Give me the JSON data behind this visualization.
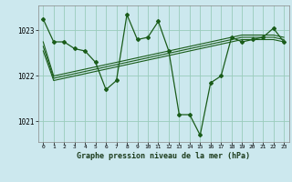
{
  "title": "Graphe pression niveau de la mer (hPa)",
  "bg_color": "#cce8ee",
  "grid_color": "#99ccbb",
  "line_color": "#1a5c1a",
  "xlim": [
    -0.5,
    23.5
  ],
  "ylim": [
    1020.55,
    1023.55
  ],
  "yticks": [
    1021,
    1022,
    1023
  ],
  "xticks": [
    0,
    1,
    2,
    3,
    4,
    5,
    6,
    7,
    8,
    9,
    10,
    11,
    12,
    13,
    14,
    15,
    16,
    17,
    18,
    19,
    20,
    21,
    22,
    23
  ],
  "main_line": [
    1023.25,
    1022.75,
    1022.75,
    1022.6,
    1022.55,
    1022.3,
    1021.7,
    1021.9,
    1023.35,
    1022.8,
    1022.85,
    1023.2,
    1022.55,
    1021.15,
    1021.15,
    1020.7,
    1021.85,
    1022.0,
    1022.85,
    1022.75,
    1022.8,
    1022.85,
    1023.05,
    1022.75
  ],
  "smooth_line1": [
    1022.75,
    1022.0,
    1022.05,
    1022.1,
    1022.15,
    1022.2,
    1022.25,
    1022.3,
    1022.35,
    1022.4,
    1022.45,
    1022.5,
    1022.55,
    1022.6,
    1022.65,
    1022.7,
    1022.75,
    1022.8,
    1022.85,
    1022.9,
    1022.9,
    1022.9,
    1022.9,
    1022.85
  ],
  "smooth_line2": [
    1022.65,
    1021.95,
    1022.0,
    1022.05,
    1022.1,
    1022.15,
    1022.2,
    1022.25,
    1022.3,
    1022.35,
    1022.4,
    1022.45,
    1022.5,
    1022.55,
    1022.6,
    1022.65,
    1022.7,
    1022.75,
    1022.8,
    1022.85,
    1022.85,
    1022.85,
    1022.85,
    1022.8
  ],
  "smooth_line3": [
    1022.55,
    1021.9,
    1021.95,
    1022.0,
    1022.05,
    1022.1,
    1022.15,
    1022.2,
    1022.25,
    1022.3,
    1022.35,
    1022.4,
    1022.45,
    1022.5,
    1022.55,
    1022.6,
    1022.65,
    1022.7,
    1022.75,
    1022.8,
    1022.8,
    1022.8,
    1022.8,
    1022.75
  ]
}
